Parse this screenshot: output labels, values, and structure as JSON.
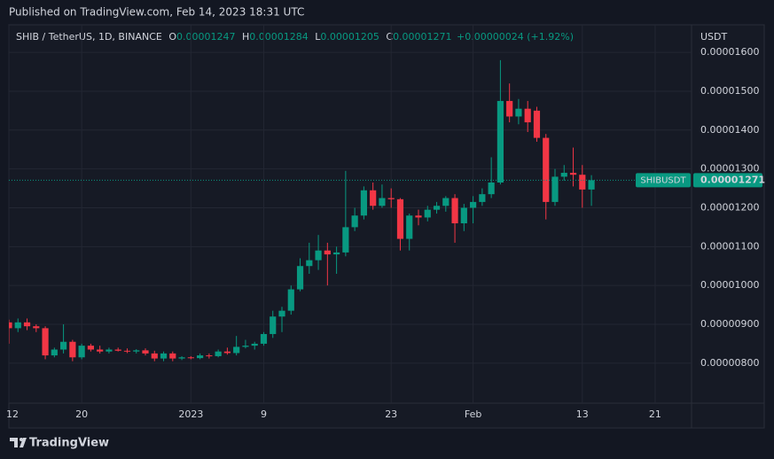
{
  "header": {
    "published": "Published on TradingView.com, Feb 14, 2023 18:31 UTC"
  },
  "chart_data": {
    "type": "candlestick",
    "symbol": "SHIB / TetherUS, 1D, BINANCE",
    "ohlc_keys": [
      "O",
      "H",
      "L",
      "C"
    ],
    "change": "+0.00000024 (+1.92%)",
    "currency": "USDT",
    "ticker": "SHIBUSDT",
    "up_color": "#089981",
    "down_color": "#f23645",
    "grid": true,
    "x": [
      "2022-12-12",
      "2022-12-13",
      "2022-12-14",
      "2022-12-15",
      "2022-12-16",
      "2022-12-17",
      "2022-12-18",
      "2022-12-19",
      "2022-12-20",
      "2022-12-21",
      "2022-12-22",
      "2022-12-23",
      "2022-12-24",
      "2022-12-25",
      "2022-12-26",
      "2022-12-27",
      "2022-12-28",
      "2022-12-29",
      "2022-12-30",
      "2022-12-31",
      "2023-01-01",
      "2023-01-02",
      "2023-01-03",
      "2023-01-04",
      "2023-01-05",
      "2023-01-06",
      "2023-01-07",
      "2023-01-08",
      "2023-01-09",
      "2023-01-10",
      "2023-01-11",
      "2023-01-12",
      "2023-01-13",
      "2023-01-14",
      "2023-01-15",
      "2023-01-16",
      "2023-01-17",
      "2023-01-18",
      "2023-01-19",
      "2023-01-20",
      "2023-01-21",
      "2023-01-22",
      "2023-01-23",
      "2023-01-24",
      "2023-01-25",
      "2023-01-26",
      "2023-01-27",
      "2023-01-28",
      "2023-01-29",
      "2023-01-30",
      "2023-01-31",
      "2023-02-01",
      "2023-02-02",
      "2023-02-03",
      "2023-02-04",
      "2023-02-05",
      "2023-02-06",
      "2023-02-07",
      "2023-02-08",
      "2023-02-09",
      "2023-02-10",
      "2023-02-11",
      "2023-02-12",
      "2023-02-13",
      "2023-02-14"
    ],
    "open": [
      9.05e-06,
      8.9e-06,
      9.05e-06,
      8.95e-06,
      8.9e-06,
      8.2e-06,
      8.35e-06,
      8.55e-06,
      8.15e-06,
      8.45e-06,
      8.35e-06,
      8.3e-06,
      8.35e-06,
      8.32e-06,
      8.3e-06,
      8.33e-06,
      8.25e-06,
      8.12e-06,
      8.25e-06,
      8.12e-06,
      8.15e-06,
      8.13e-06,
      8.2e-06,
      8.18e-06,
      8.3e-06,
      8.26e-06,
      8.42e-06,
      8.45e-06,
      8.5e-06,
      8.75e-06,
      9.2e-06,
      9.35e-06,
      9.9e-06,
      1.05e-05,
      1.065e-05,
      1.09e-05,
      1.08e-05,
      1.085e-05,
      1.15e-05,
      1.18e-05,
      1.245e-05,
      1.205e-05,
      1.225e-05,
      1.222e-05,
      1.12e-05,
      1.18e-05,
      1.175e-05,
      1.195e-05,
      1.205e-05,
      1.225e-05,
      1.16e-05,
      1.2e-05,
      1.215e-05,
      1.235e-05,
      1.265e-05,
      1.475e-05,
      1.435e-05,
      1.455e-05,
      1.45e-05,
      1.38e-05,
      1.215e-05,
      1.28e-05,
      1.29e-05,
      1.285e-05,
      1.247e-05
    ],
    "high": [
      9.12e-06,
      9.15e-06,
      9.15e-06,
      9e-06,
      8.95e-06,
      8.4e-06,
      9e-06,
      8.6e-06,
      8.5e-06,
      8.5e-06,
      8.45e-06,
      8.4e-06,
      8.4e-06,
      8.38e-06,
      8.36e-06,
      8.38e-06,
      8.32e-06,
      8.3e-06,
      8.3e-06,
      8.18e-06,
      8.18e-06,
      8.25e-06,
      8.25e-06,
      8.35e-06,
      8.4e-06,
      8.7e-06,
      8.6e-06,
      8.55e-06,
      8.8e-06,
      9.35e-06,
      9.45e-06,
      1e-05,
      1.07e-05,
      1.11e-05,
      1.13e-05,
      1.11e-05,
      1.1e-05,
      1.295e-05,
      1.2e-05,
      1.255e-05,
      1.265e-05,
      1.26e-05,
      1.25e-05,
      1.225e-05,
      1.185e-05,
      1.195e-05,
      1.205e-05,
      1.215e-05,
      1.23e-05,
      1.235e-05,
      1.21e-05,
      1.23e-05,
      1.25e-05,
      1.33e-05,
      1.58e-05,
      1.52e-05,
      1.48e-05,
      1.475e-05,
      1.46e-05,
      1.39e-05,
      1.3e-05,
      1.31e-05,
      1.355e-05,
      1.31e-05,
      1.284e-05
    ],
    "low": [
      8.5e-06,
      8.8e-06,
      8.85e-06,
      8.8e-06,
      8.1e-06,
      8.15e-06,
      8.25e-06,
      8.05e-06,
      8.1e-06,
      8.3e-06,
      8.25e-06,
      8.25e-06,
      8.3e-06,
      8.26e-06,
      8.25e-06,
      8.2e-06,
      8.05e-06,
      8.05e-06,
      8.05e-06,
      8.08e-06,
      8.1e-06,
      8.1e-06,
      8.12e-06,
      8.15e-06,
      8.22e-06,
      8.2e-06,
      8.38e-06,
      8.35e-06,
      8.45e-06,
      8.65e-06,
      8.8e-06,
      9.25e-06,
      9.85e-06,
      1.03e-05,
      1.04e-05,
      1e-05,
      1.03e-05,
      1.075e-05,
      1.14e-05,
      1.17e-05,
      1.195e-05,
      1.2e-05,
      1.2e-05,
      1.09e-05,
      1.09e-05,
      1.155e-05,
      1.165e-05,
      1.185e-05,
      1.19e-05,
      1.11e-05,
      1.14e-05,
      1.16e-05,
      1.205e-05,
      1.225e-05,
      1.26e-05,
      1.42e-05,
      1.415e-05,
      1.395e-05,
      1.37e-05,
      1.17e-05,
      1.205e-05,
      1.27e-05,
      1.255e-05,
      1.2e-05,
      1.205e-05
    ],
    "close": [
      8.9e-06,
      9.05e-06,
      8.95e-06,
      8.9e-06,
      8.2e-06,
      8.35e-06,
      8.55e-06,
      8.15e-06,
      8.45e-06,
      8.35e-06,
      8.3e-06,
      8.35e-06,
      8.32e-06,
      8.3e-06,
      8.33e-06,
      8.25e-06,
      8.12e-06,
      8.25e-06,
      8.12e-06,
      8.15e-06,
      8.13e-06,
      8.2e-06,
      8.18e-06,
      8.3e-06,
      8.26e-06,
      8.42e-06,
      8.45e-06,
      8.5e-06,
      8.75e-06,
      9.2e-06,
      9.35e-06,
      9.9e-06,
      1.05e-05,
      1.065e-05,
      1.09e-05,
      1.08e-05,
      1.085e-05,
      1.15e-05,
      1.18e-05,
      1.245e-05,
      1.205e-05,
      1.225e-05,
      1.222e-05,
      1.12e-05,
      1.18e-05,
      1.175e-05,
      1.195e-05,
      1.205e-05,
      1.225e-05,
      1.16e-05,
      1.2e-05,
      1.215e-05,
      1.235e-05,
      1.265e-05,
      1.475e-05,
      1.435e-05,
      1.455e-05,
      1.42e-05,
      1.38e-05,
      1.215e-05,
      1.28e-05,
      1.29e-05,
      1.285e-05,
      1.247e-05,
      1.271e-05
    ],
    "ylim": [
      6.97e-06,
      1.671e-05
    ],
    "yticks": [
      {
        "value": 8e-06,
        "label": "0.00000800"
      },
      {
        "value": 9e-06,
        "label": "0.00000900"
      },
      {
        "value": 1e-05,
        "label": "0.00001000"
      },
      {
        "value": 1.1e-05,
        "label": "0.00001100"
      },
      {
        "value": 1.2e-05,
        "label": "0.00001200"
      },
      {
        "value": 1.3e-05,
        "label": "0.00001300"
      },
      {
        "value": 1.4e-05,
        "label": "0.00001400"
      },
      {
        "value": 1.5e-05,
        "label": "0.00001500"
      },
      {
        "value": 1.6e-05,
        "label": "0.00001600"
      }
    ],
    "xlim": [
      "2022-12-12",
      "2023-02-25"
    ],
    "xticks": [
      {
        "value": "2022-12-12",
        "label": "12"
      },
      {
        "value": "2022-12-20",
        "label": "20"
      },
      {
        "value": "2023-01-01",
        "label": "2023"
      },
      {
        "value": "2023-01-09",
        "label": "9"
      },
      {
        "value": "2023-01-23",
        "label": "23"
      },
      {
        "value": "2023-02-01",
        "label": "Feb"
      },
      {
        "value": "2023-02-13",
        "label": "13"
      },
      {
        "value": "2023-02-21",
        "label": "21"
      }
    ]
  },
  "footer": {
    "brand": "TradingView"
  }
}
